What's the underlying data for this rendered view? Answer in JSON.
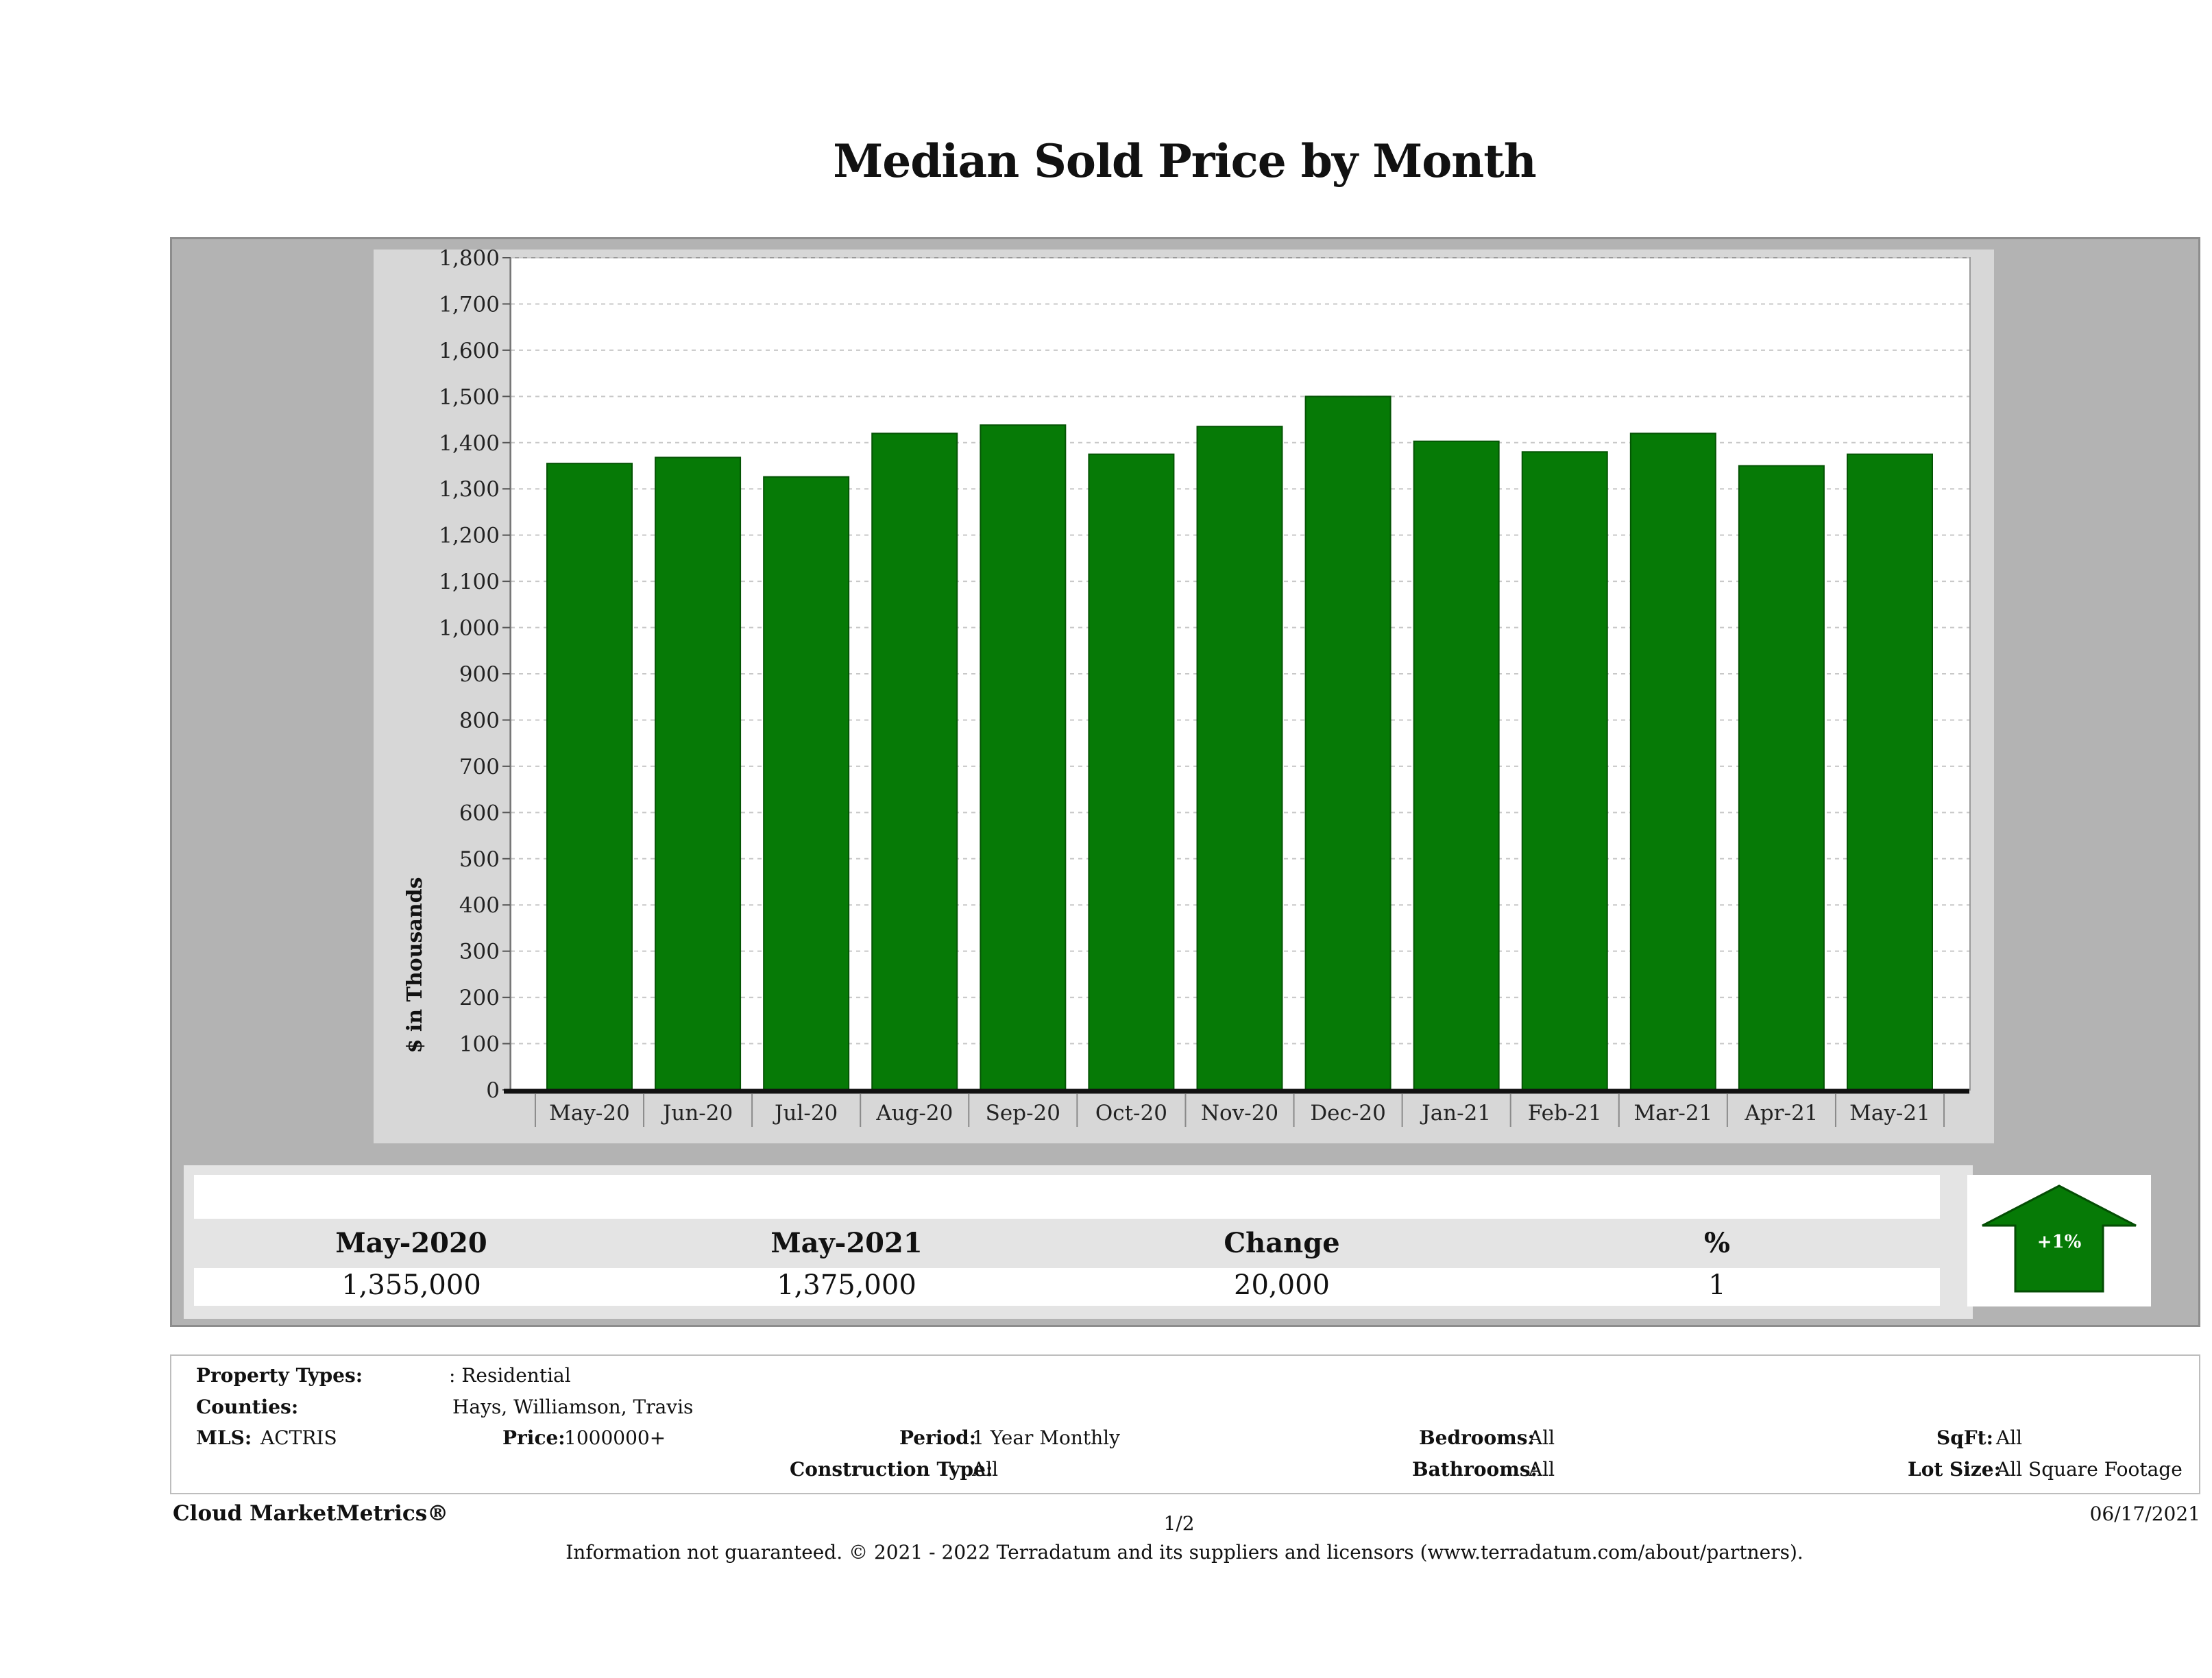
{
  "title": "Median Sold Price by Month",
  "chart_data": {
    "type": "bar",
    "title": "Median Sold Price by Month",
    "ylabel": "$ in Thousands",
    "xlabel": "",
    "ylim": [
      0,
      1800
    ],
    "yticks": [
      0,
      100,
      200,
      300,
      400,
      500,
      600,
      700,
      800,
      900,
      1000,
      1100,
      1200,
      1300,
      1400,
      1500,
      1600,
      1700,
      1800
    ],
    "categories": [
      "May-20",
      "Jun-20",
      "Jul-20",
      "Aug-20",
      "Sep-20",
      "Oct-20",
      "Nov-20",
      "Dec-20",
      "Jan-21",
      "Feb-21",
      "Mar-21",
      "Apr-21",
      "May-21"
    ],
    "values": [
      1355,
      1368,
      1326,
      1420,
      1438,
      1375,
      1435,
      1500,
      1403,
      1380,
      1420,
      1350,
      1375
    ],
    "bar_color": "#067a06",
    "grid": true
  },
  "summary": {
    "col1_header": "May-2020",
    "col2_header": "May-2021",
    "col3_header": "Change",
    "col4_header": "%",
    "col1_value": "1,355,000",
    "col2_value": "1,375,000",
    "col3_value": "20,000",
    "col4_value": "1",
    "badge": "+1%",
    "badge_color": "#067a06"
  },
  "filters": {
    "property_types_label": "Property Types:",
    "property_types_value": ": Residential",
    "counties_label": "Counties:",
    "counties_value": "Hays, Williamson, Travis",
    "mls_label": "MLS:",
    "mls_value": "ACTRIS",
    "price_label": "Price:",
    "price_value": "1000000+",
    "period_label": "Period:",
    "period_value": "1 Year Monthly",
    "construction_label": "Construction Type:",
    "construction_value": "All",
    "bedrooms_label": "Bedrooms:",
    "bedrooms_value": "All",
    "bathrooms_label": "Bathrooms:",
    "bathrooms_value": "All",
    "sqft_label": "SqFt:",
    "sqft_value": "All",
    "lotsize_label": "Lot Size:",
    "lotsize_value": "All Square Footage"
  },
  "footer": {
    "brand": "Cloud MarketMetrics®",
    "page": "1/2",
    "date": "06/17/2021",
    "disclaimer": "Information not guaranteed. © 2021 - 2022 Terradatum and its suppliers and licensors (www.terradatum.com/about/partners)."
  }
}
